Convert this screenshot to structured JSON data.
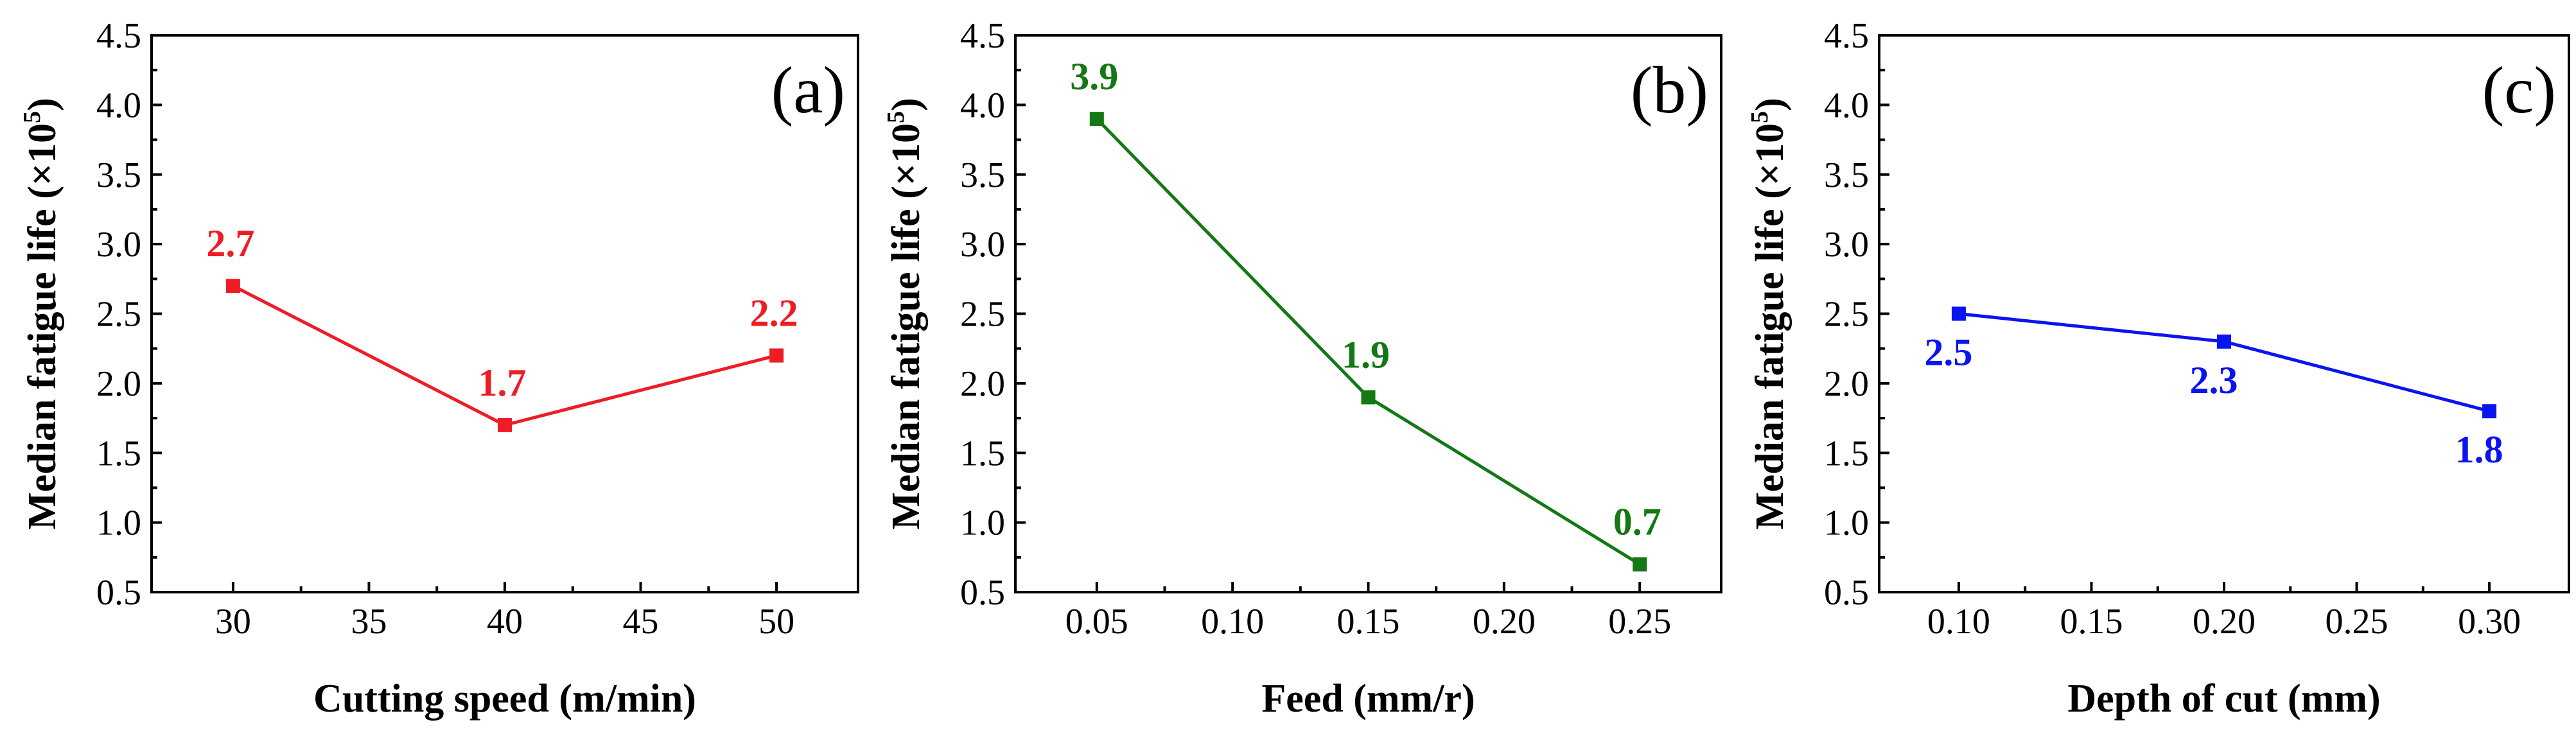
{
  "chart_data": [
    {
      "type": "line",
      "panel": "(a)",
      "xlabel": "Cutting speed (m/min)",
      "ylabel_main": "Median fatigue life (×10",
      "ylabel_sup": "5",
      "ylabel_close": ")",
      "x": [
        30,
        40,
        50
      ],
      "values": [
        2.7,
        1.7,
        2.2
      ],
      "point_labels": [
        "2.7",
        "1.7",
        "2.2"
      ],
      "label_position": [
        "above",
        "above",
        "above"
      ],
      "xlim": [
        27,
        53
      ],
      "xticks": [
        30,
        35,
        40,
        45,
        50
      ],
      "xtick_labels": [
        "30",
        "35",
        "40",
        "45",
        "50"
      ],
      "ylim": [
        0.5,
        4.5
      ],
      "yticks": [
        0.5,
        1.0,
        1.5,
        2.0,
        2.5,
        3.0,
        3.5,
        4.0,
        4.5
      ],
      "ytick_labels": [
        "0.5",
        "1.0",
        "1.5",
        "2.0",
        "2.5",
        "3.0",
        "3.5",
        "4.0",
        "4.5"
      ],
      "color": "#ee1c25"
    },
    {
      "type": "line",
      "panel": "(b)",
      "xlabel": "Feed (mm/r)",
      "ylabel_main": "Median fatigue life (×10",
      "ylabel_sup": "5",
      "ylabel_close": ")",
      "x": [
        0.05,
        0.15,
        0.25
      ],
      "values": [
        3.9,
        1.9,
        0.7
      ],
      "point_labels": [
        "3.9",
        "1.9",
        "0.7"
      ],
      "label_position": [
        "above",
        "above",
        "above"
      ],
      "xlim": [
        0.02,
        0.28
      ],
      "xticks": [
        0.05,
        0.1,
        0.15,
        0.2,
        0.25
      ],
      "xtick_labels": [
        "0.05",
        "0.10",
        "0.15",
        "0.20",
        "0.25"
      ],
      "ylim": [
        0.5,
        4.5
      ],
      "yticks": [
        0.5,
        1.0,
        1.5,
        2.0,
        2.5,
        3.0,
        3.5,
        4.0,
        4.5
      ],
      "ytick_labels": [
        "0.5",
        "1.0",
        "1.5",
        "2.0",
        "2.5",
        "3.0",
        "3.5",
        "4.0",
        "4.5"
      ],
      "color": "#147814"
    },
    {
      "type": "line",
      "panel": "(c)",
      "xlabel": "Depth of cut (mm)",
      "ylabel_main": "Median fatigue life (×10",
      "ylabel_sup": "5",
      "ylabel_close": ")",
      "x": [
        0.1,
        0.2,
        0.3
      ],
      "values": [
        2.5,
        2.3,
        1.8
      ],
      "point_labels": [
        "2.5",
        "2.3",
        "1.8"
      ],
      "label_position": [
        "below",
        "below",
        "below"
      ],
      "xlim": [
        0.07,
        0.33
      ],
      "xticks": [
        0.1,
        0.15,
        0.2,
        0.25,
        0.3
      ],
      "xtick_labels": [
        "0.10",
        "0.15",
        "0.20",
        "0.25",
        "0.30"
      ],
      "ylim": [
        0.5,
        4.5
      ],
      "yticks": [
        0.5,
        1.0,
        1.5,
        2.0,
        2.5,
        3.0,
        3.5,
        4.0,
        4.5
      ],
      "ytick_labels": [
        "0.5",
        "1.0",
        "1.5",
        "2.0",
        "2.5",
        "3.0",
        "3.5",
        "4.0",
        "4.5"
      ],
      "color": "#0a14f0"
    }
  ]
}
